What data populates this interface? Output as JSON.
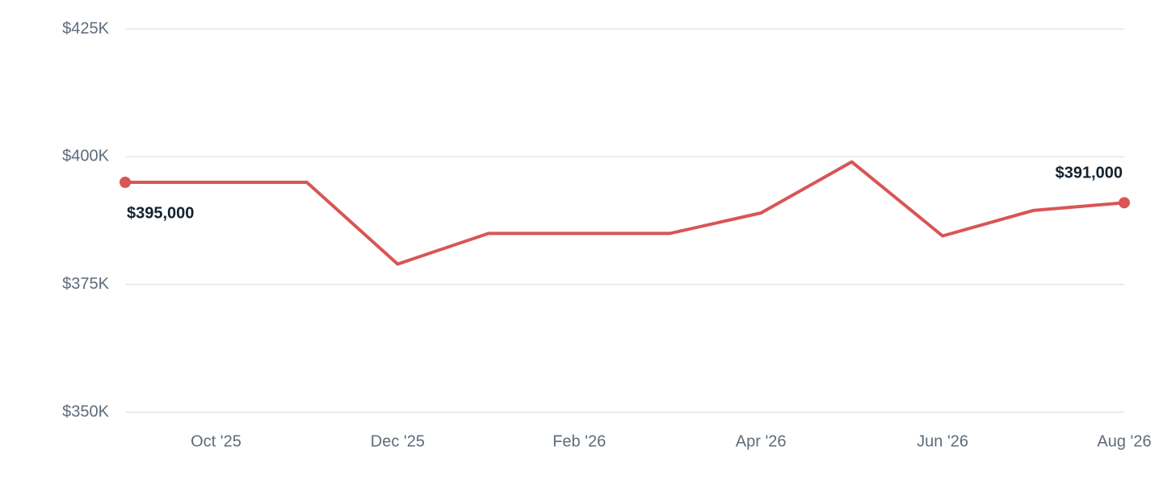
{
  "chart_data": {
    "type": "line",
    "categories": [
      null,
      "Oct '25",
      null,
      "Dec '25",
      null,
      "Feb '26",
      null,
      "Apr '26",
      null,
      "Jun '26",
      null,
      "Aug '26"
    ],
    "series": [
      {
        "color": "#d95555",
        "values": [
          395000,
          395000,
          395000,
          379000,
          385000,
          385000,
          385000,
          389000,
          399000,
          384500,
          389500,
          391000
        ],
        "value_labels": [
          "$395,000",
          null,
          null,
          null,
          null,
          null,
          null,
          null,
          null,
          null,
          null,
          "$391,000"
        ]
      }
    ],
    "ylim": [
      350000,
      425000
    ],
    "yticks": [
      {
        "value": 350000,
        "label": "$350K"
      },
      {
        "value": 375000,
        "label": "$375K"
      },
      {
        "value": 400000,
        "label": "$400K"
      },
      {
        "value": 425000,
        "label": "$425K"
      }
    ],
    "grid": true
  }
}
